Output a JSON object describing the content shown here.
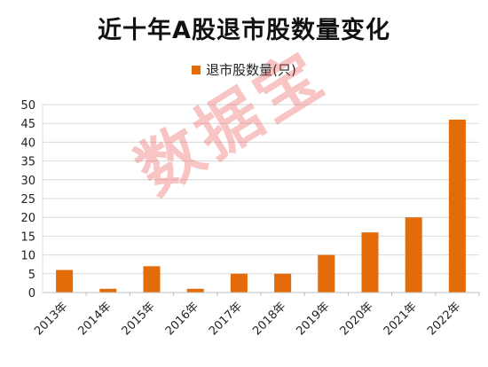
{
  "chart_data": {
    "type": "bar",
    "title": "近十年A股退市股数量变化",
    "series": [
      {
        "name": "退市股数量(只)",
        "values": [
          6,
          1,
          7,
          1,
          5,
          5,
          10,
          16,
          20,
          46
        ]
      }
    ],
    "categories": [
      "2013年",
      "2014年",
      "2015年",
      "2016年",
      "2017年",
      "2018年",
      "2019年",
      "2020年",
      "2021年",
      "2022年"
    ],
    "ylim": [
      0,
      50
    ],
    "yticks": [
      "0",
      "5",
      "10",
      "15",
      "20",
      "25",
      "30",
      "35",
      "40",
      "45",
      "50"
    ],
    "grid": "horizontal",
    "legend_position": "top",
    "bar_color": "#E36C09"
  },
  "watermark": "数据宝"
}
